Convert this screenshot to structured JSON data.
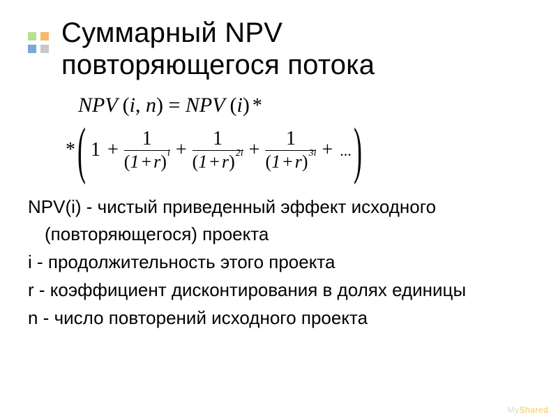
{
  "title": {
    "line1": "Суммарный NPV",
    "line2": "повторяющегося потока"
  },
  "bullet": {
    "colors": [
      "#b9e08a",
      "#f7b96b",
      "#7aa6d9",
      "#c8c8c8"
    ]
  },
  "formula": {
    "line1": "NPV (i, n) = NPV (i) *",
    "lead": "*",
    "open_paren": "(",
    "close_paren": ")",
    "first_term": "1",
    "plus": "+",
    "ellipsis": "...",
    "fractions": [
      {
        "num": "1",
        "base": "(1 + r)",
        "exp": "i"
      },
      {
        "num": "1",
        "base": "(1 + r)",
        "exp": "2i"
      },
      {
        "num": "1",
        "base": "(1 + r)",
        "exp": "3i"
      }
    ]
  },
  "definitions": [
    "NPV(i) - чистый приведенный эффект исходного",
    "(повторяющегося) проекта",
    "i - продолжительность этого проекта",
    "r - коэффициент дисконтирования в долях единицы",
    "n - число повторений исходного проекта"
  ],
  "watermark": {
    "left": "My",
    "right": "Shared."
  },
  "styles": {
    "title_fontsize": 40,
    "body_fontsize": 26,
    "formula_fontsize": 30,
    "text_color": "#000000",
    "background": "#ffffff"
  }
}
